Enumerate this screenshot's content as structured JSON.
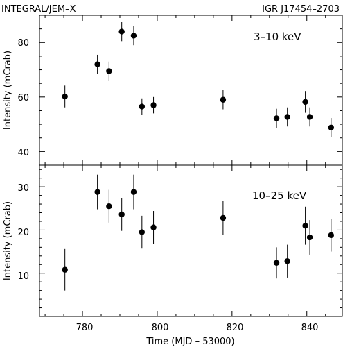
{
  "header": {
    "left": "INTEGRAL/JEM–X",
    "right": "IGR J17454–2703"
  },
  "xlabel": "Time (MJD – 53000)",
  "x_ticks": [
    "780",
    "800",
    "820",
    "840"
  ],
  "chart_data": [
    {
      "type": "scatter",
      "panel": "top",
      "band": "3–10 keV",
      "ylabel": "Intensity (mCrab)",
      "xlim": [
        768.5,
        849.5
      ],
      "ylim": [
        35,
        90
      ],
      "y_ticks": [
        "40",
        "60",
        "80"
      ],
      "points": [
        {
          "x": 775.3,
          "y": 60.2,
          "err": 4.0
        },
        {
          "x": 784.0,
          "y": 72.0,
          "err": 3.5
        },
        {
          "x": 787.1,
          "y": 69.5,
          "err": 3.5
        },
        {
          "x": 790.5,
          "y": 84.0,
          "err": 3.5
        },
        {
          "x": 793.7,
          "y": 82.5,
          "err": 3.5
        },
        {
          "x": 795.9,
          "y": 56.5,
          "err": 3.0
        },
        {
          "x": 799.0,
          "y": 57.0,
          "err": 3.0
        },
        {
          "x": 817.6,
          "y": 59.0,
          "err": 3.5
        },
        {
          "x": 831.9,
          "y": 52.2,
          "err": 3.5
        },
        {
          "x": 834.8,
          "y": 52.7,
          "err": 3.5
        },
        {
          "x": 839.6,
          "y": 58.2,
          "err": 4.0
        },
        {
          "x": 840.8,
          "y": 52.7,
          "err": 3.5
        },
        {
          "x": 846.5,
          "y": 48.8,
          "err": 3.5
        }
      ]
    },
    {
      "type": "scatter",
      "panel": "bottom",
      "band": "10–25 keV",
      "ylabel": "Intensity (mCrab)",
      "xlim": [
        768.5,
        849.5
      ],
      "ylim": [
        0,
        35
      ],
      "y_ticks": [
        "10",
        "20",
        "30"
      ],
      "points": [
        {
          "x": 775.3,
          "y": 10.8,
          "err": 4.8
        },
        {
          "x": 784.0,
          "y": 28.8,
          "err": 4.0
        },
        {
          "x": 787.1,
          "y": 25.5,
          "err": 3.8
        },
        {
          "x": 790.5,
          "y": 23.6,
          "err": 3.8
        },
        {
          "x": 793.7,
          "y": 28.8,
          "err": 4.0
        },
        {
          "x": 795.9,
          "y": 19.5,
          "err": 3.8
        },
        {
          "x": 799.0,
          "y": 20.6,
          "err": 3.8
        },
        {
          "x": 817.6,
          "y": 22.8,
          "err": 4.0
        },
        {
          "x": 831.9,
          "y": 12.4,
          "err": 3.6
        },
        {
          "x": 834.8,
          "y": 12.8,
          "err": 3.8
        },
        {
          "x": 839.6,
          "y": 21.0,
          "err": 4.4
        },
        {
          "x": 840.8,
          "y": 18.3,
          "err": 4.0
        },
        {
          "x": 846.5,
          "y": 18.8,
          "err": 3.8
        }
      ]
    }
  ]
}
